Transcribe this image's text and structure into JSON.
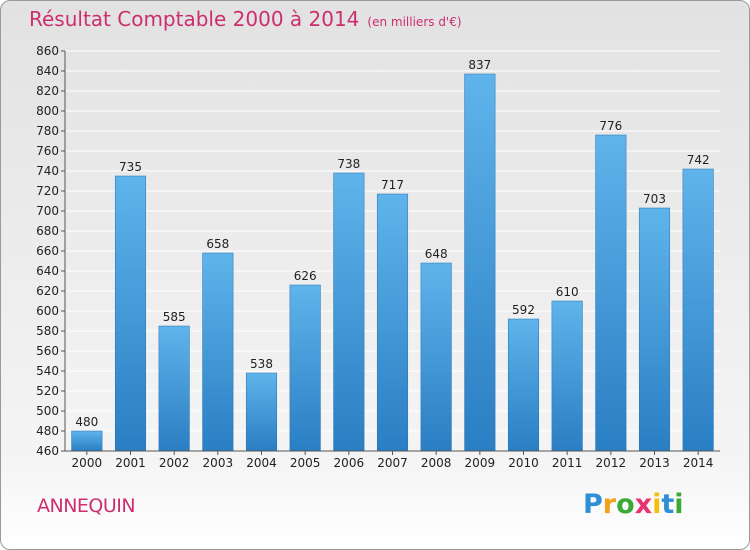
{
  "header": {
    "title": "Résultat Comptable 2000 à 2014",
    "subtitle": "(en milliers d'€)"
  },
  "footer": {
    "commune": "ANNEQUIN",
    "logo_letters": [
      "P",
      "r",
      "o",
      "x",
      "i",
      "t",
      "i"
    ],
    "logo_colors": [
      "#2e8fd6",
      "#f2a21a",
      "#3aaa35",
      "#e8336f",
      "#f2c10e",
      "#2e8fd6",
      "#3aaa35"
    ]
  },
  "colors": {
    "bar_light": "#5fb4eb",
    "bar_dark": "#2a7ec3",
    "grid": "#ffffff",
    "axis": "#555555"
  },
  "chart_data": {
    "type": "bar",
    "title": "Résultat Comptable 2000 à 2014",
    "subtitle": "(en milliers d'€)",
    "xlabel": "",
    "ylabel": "",
    "categories": [
      "2000",
      "2001",
      "2002",
      "2003",
      "2004",
      "2005",
      "2006",
      "2007",
      "2008",
      "2009",
      "2010",
      "2011",
      "2012",
      "2013",
      "2014"
    ],
    "values": [
      480,
      735,
      585,
      658,
      538,
      626,
      738,
      717,
      648,
      837,
      592,
      610,
      776,
      703,
      742
    ],
    "ylim": [
      460,
      860
    ],
    "ytick_step": 20,
    "grid": true
  }
}
